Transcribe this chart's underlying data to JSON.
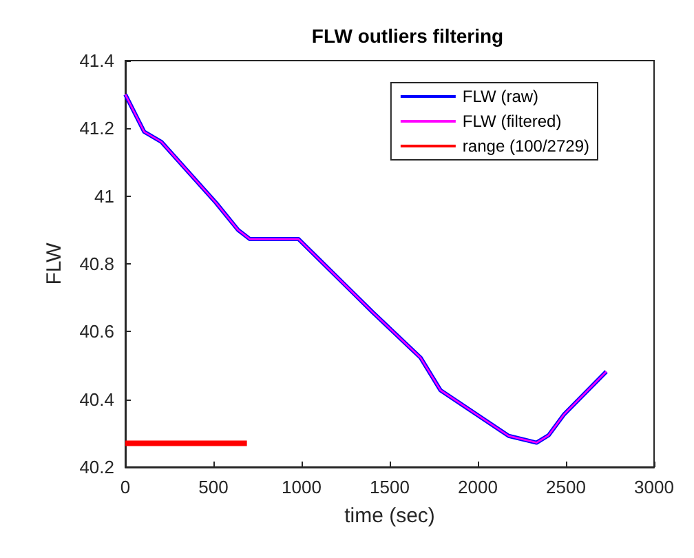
{
  "chart_data": {
    "type": "line",
    "title": "FLW outliers filtering",
    "xlabel": "time (sec)",
    "ylabel": "FLW",
    "xlim": [
      0,
      3000
    ],
    "xticks": [
      0,
      500,
      1000,
      1500,
      2000,
      2500,
      3000
    ],
    "ylim": [
      40.2,
      41.4
    ],
    "yticks": [
      40.2,
      40.4,
      40.6,
      40.8,
      41,
      41.2,
      41.4
    ],
    "grid": false,
    "legend": "top right",
    "marker": "none",
    "line_style": "solid",
    "series": [
      {
        "name": "FLW (raw)",
        "color": "#0000ff",
        "x": [
          0,
          107,
          205,
          515,
          640,
          707,
          983,
          1402,
          1675,
          1788,
          2175,
          2333,
          2402,
          2490,
          2729
        ],
        "values": [
          41.3,
          41.19,
          41.16,
          40.98,
          40.9,
          40.873,
          40.873,
          40.658,
          40.523,
          40.427,
          40.292,
          40.272,
          40.294,
          40.356,
          40.482
        ]
      },
      {
        "name": "FLW (filtered)",
        "color": "#ff00ff",
        "x": [
          0,
          107,
          205,
          515,
          640,
          707,
          983,
          1402,
          1675,
          1788,
          2175,
          2333,
          2402,
          2490,
          2729
        ],
        "values": [
          41.3,
          41.19,
          41.16,
          40.98,
          40.9,
          40.873,
          40.873,
          40.658,
          40.523,
          40.427,
          40.292,
          40.272,
          40.294,
          40.356,
          40.482
        ]
      },
      {
        "name": "range (100/2729)",
        "color": "#ff0000",
        "x": [
          0,
          690
        ],
        "values": [
          40.27,
          40.27
        ]
      }
    ]
  }
}
